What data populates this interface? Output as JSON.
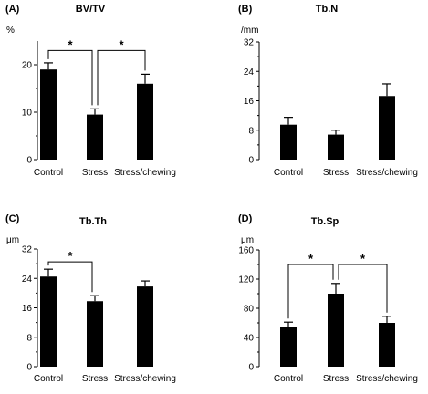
{
  "chart_data": [
    {
      "type": "bar",
      "panel": "(A)",
      "title": "BV/TV",
      "unit": "%",
      "categories": [
        "Control",
        "Stress",
        "Stress/chewing"
      ],
      "values": [
        19,
        9.5,
        16
      ],
      "errors": [
        1.4,
        1.2,
        2.0
      ],
      "yticks": [
        "0",
        "10",
        "20"
      ],
      "ylim": [
        0,
        25
      ],
      "significance": [
        {
          "from": 0,
          "to": 1,
          "level": 23,
          "label": "*"
        },
        {
          "from": 1,
          "to": 2,
          "level": 23,
          "label": "*"
        }
      ]
    },
    {
      "type": "bar",
      "panel": "(B)",
      "title": "Tb.N",
      "unit": "/mm",
      "categories": [
        "Control",
        "Stress",
        "Stress/chewing"
      ],
      "values": [
        9.5,
        6.8,
        17.3
      ],
      "errors": [
        2.0,
        1.2,
        3.3
      ],
      "yticks": [
        "0",
        "8",
        "16",
        "24",
        "32"
      ],
      "ylim": [
        0,
        32
      ],
      "significance": []
    },
    {
      "type": "bar",
      "panel": "(C)",
      "title": "Tb.Th",
      "unit": "μm",
      "categories": [
        "Control",
        "Stress",
        "Stress/chewing"
      ],
      "values": [
        24.5,
        17.8,
        21.8
      ],
      "errors": [
        2.0,
        1.5,
        1.5
      ],
      "yticks": [
        "0",
        "8",
        "16",
        "24",
        "32"
      ],
      "ylim": [
        0,
        32
      ],
      "significance": [
        {
          "from": 0,
          "to": 1,
          "level": 28.5,
          "label": "*"
        }
      ]
    },
    {
      "type": "bar",
      "panel": "(D)",
      "title": "Tb.Sp",
      "unit": "μm",
      "categories": [
        "Control",
        "Stress",
        "Stress/chewing"
      ],
      "values": [
        54,
        100,
        60
      ],
      "errors": [
        7,
        14,
        9
      ],
      "yticks": [
        "0",
        "40",
        "80",
        "120",
        "160"
      ],
      "ylim": [
        0,
        160
      ],
      "significance": [
        {
          "from": 0,
          "to": 1,
          "level": 140,
          "label": "*"
        },
        {
          "from": 1,
          "to": 2,
          "level": 140,
          "label": "*"
        }
      ]
    }
  ]
}
